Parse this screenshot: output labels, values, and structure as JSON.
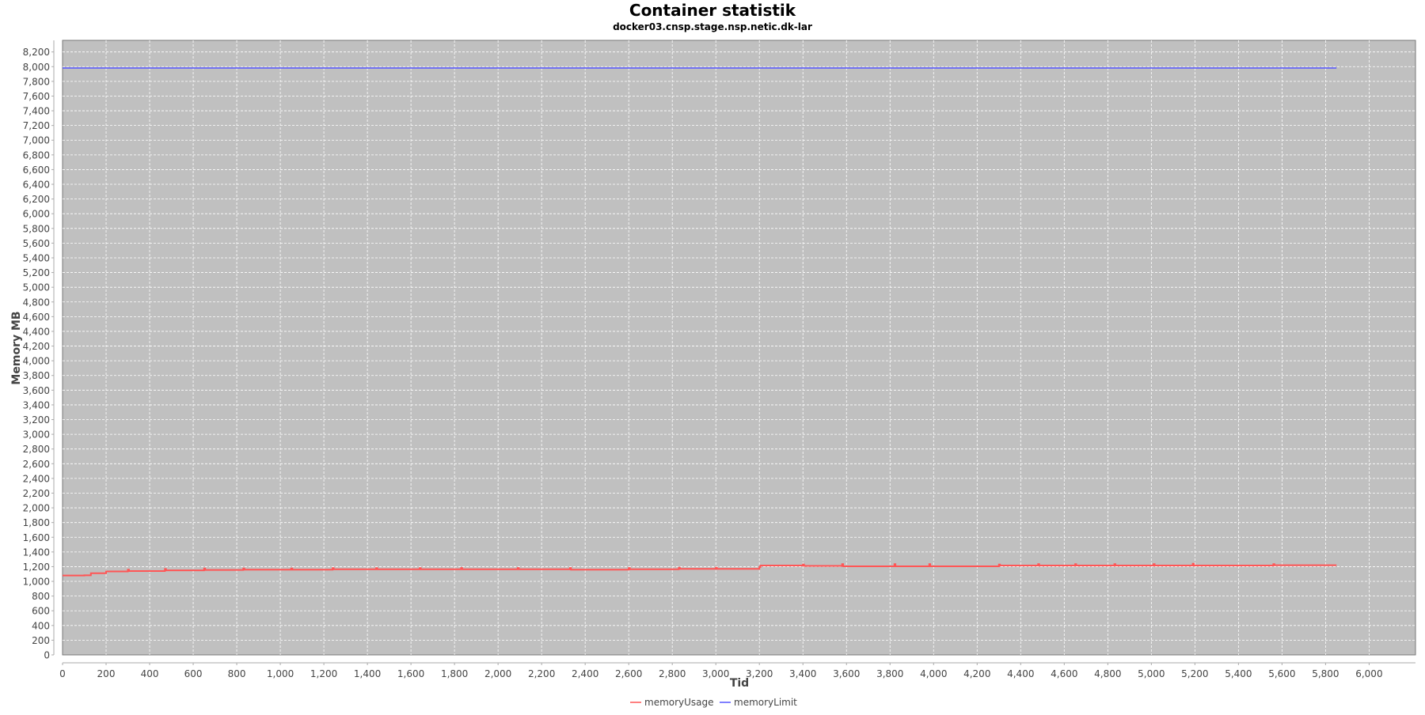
{
  "chart_data": {
    "type": "line",
    "title": "Container statistik",
    "subtitle": "docker03.cnsp.stage.nsp.netic.dk-lar",
    "xlabel": "Tid",
    "ylabel": "Memory MB",
    "xlim": [
      0,
      6213
    ],
    "ylim": [
      0,
      8358
    ],
    "x_ticks": [
      0,
      200,
      400,
      600,
      800,
      1000,
      1200,
      1400,
      1600,
      1800,
      2000,
      2200,
      2400,
      2600,
      2800,
      3000,
      3200,
      3400,
      3600,
      3800,
      4000,
      4200,
      4400,
      4600,
      4800,
      5000,
      5200,
      5400,
      5600,
      5800,
      6000
    ],
    "y_ticks": [
      0,
      200,
      400,
      600,
      800,
      1000,
      1200,
      1400,
      1600,
      1800,
      2000,
      2200,
      2400,
      2600,
      2800,
      3000,
      3200,
      3400,
      3600,
      3800,
      4000,
      4200,
      4400,
      4600,
      4800,
      5000,
      5200,
      5400,
      5600,
      5800,
      6000,
      6200,
      6400,
      6600,
      6800,
      7000,
      7200,
      7400,
      7600,
      7800,
      8000,
      8200
    ],
    "grid": true,
    "legend_position": "bottom",
    "background": "#c0c0c0",
    "series": [
      {
        "name": "memoryUsage",
        "color": "#ff5555",
        "x": [
          0,
          100,
          130,
          200,
          300,
          305,
          470,
          475,
          650,
          655,
          830,
          835,
          1050,
          1055,
          1240,
          1245,
          1440,
          1445,
          1640,
          1645,
          1830,
          1835,
          2090,
          2095,
          2330,
          2335,
          2600,
          2605,
          2830,
          2835,
          3000,
          3005,
          3200,
          3205,
          3400,
          3405,
          3580,
          3585,
          3820,
          3825,
          3980,
          3985,
          4300,
          4305,
          4480,
          4485,
          4650,
          4655,
          4830,
          4835,
          5010,
          5015,
          5190,
          5195,
          5560,
          5565,
          5850
        ],
        "y": [
          1080,
          1082,
          1110,
          1135,
          1160,
          1140,
          1168,
          1150,
          1175,
          1155,
          1175,
          1160,
          1175,
          1160,
          1180,
          1165,
          1180,
          1165,
          1180,
          1165,
          1182,
          1165,
          1182,
          1165,
          1182,
          1160,
          1182,
          1165,
          1185,
          1170,
          1185,
          1170,
          1195,
          1215,
          1230,
          1210,
          1235,
          1205,
          1235,
          1205,
          1235,
          1205,
          1230,
          1215,
          1235,
          1215,
          1235,
          1215,
          1235,
          1215,
          1235,
          1215,
          1240,
          1215,
          1235,
          1220,
          1220
        ]
      },
      {
        "name": "memoryLimit",
        "color": "#5555ff",
        "x": [
          0,
          5850
        ],
        "y": [
          7982,
          7982
        ]
      }
    ]
  }
}
